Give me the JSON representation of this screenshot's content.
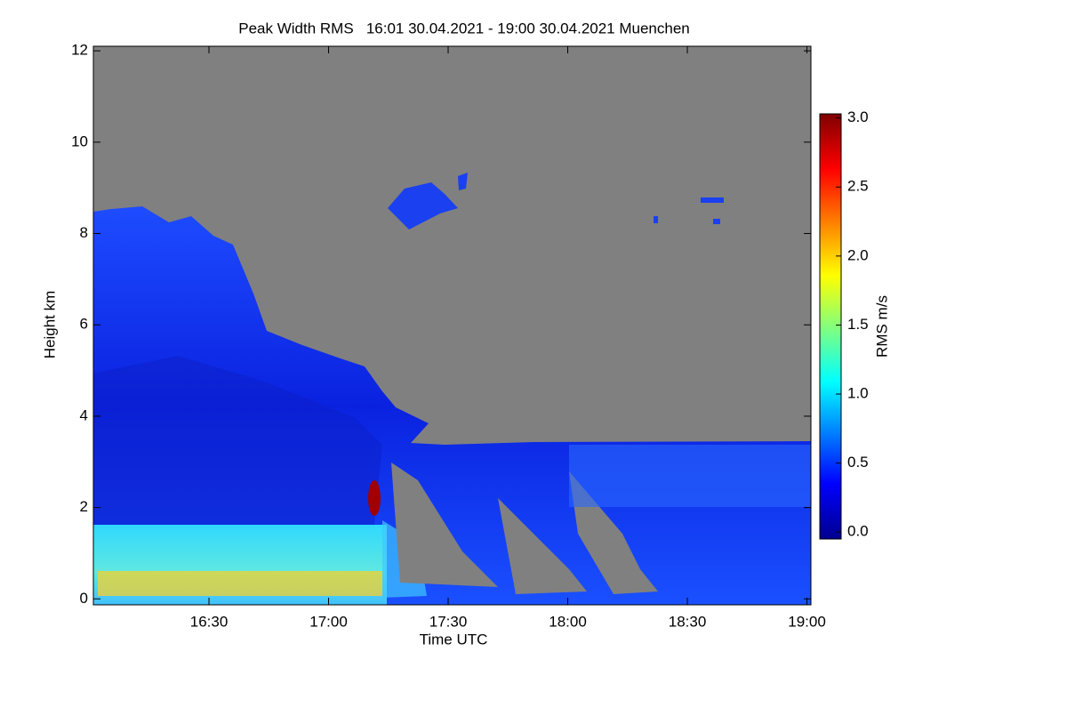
{
  "chart_data": {
    "type": "heatmap",
    "title": "Peak Width RMS   16:01 30.04.2021 - 19:00 30.04.2021 Muenchen",
    "x_label": "Time UTC",
    "y_label": "Height km",
    "colorbar_label": "RMS m/s",
    "xlim": [
      961,
      1141
    ],
    "xticks": [
      {
        "value": 990,
        "label": "16:30"
      },
      {
        "value": 1020,
        "label": "17:00"
      },
      {
        "value": 1050,
        "label": "17:30"
      },
      {
        "value": 1080,
        "label": "18:00"
      },
      {
        "value": 1110,
        "label": "18:30"
      },
      {
        "value": 1140,
        "label": "19:00"
      }
    ],
    "ylim": [
      -0.13,
      12.1
    ],
    "yticks": [
      0,
      2,
      4,
      6,
      8,
      10,
      12
    ],
    "clim": [
      -0.05,
      3.03
    ],
    "cticks": [
      {
        "value": 0,
        "label": "0.0"
      },
      {
        "value": 0.5,
        "label": "0.5"
      },
      {
        "value": 1,
        "label": "1.0"
      },
      {
        "value": 1.5,
        "label": "1.5"
      },
      {
        "value": 2,
        "label": "2.0"
      },
      {
        "value": 2.5,
        "label": "2.5"
      },
      {
        "value": 3,
        "label": "3.0"
      }
    ],
    "background_color": "#808080"
  }
}
